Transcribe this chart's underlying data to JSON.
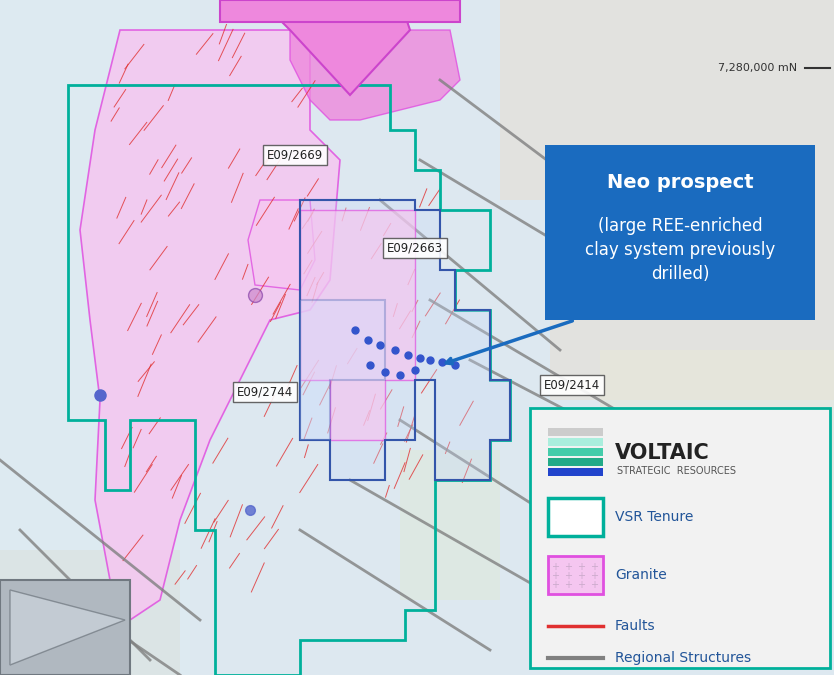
{
  "bg_color": "#e8eef5",
  "map_bg": "#dde8f0",
  "north_arrow_text": "7,280,000 mN",
  "neo_prospect_title": "Neo prospect",
  "neo_prospect_body": "(large REE-enriched\nclay system previously\ndrilled)",
  "neo_box_color": "#1a6bbf",
  "neo_text_color": "#ffffff",
  "label_E09_2669": "E09/2669",
  "label_E09_2663": "E09/2663",
  "label_E09_2744": "E09/2744",
  "label_E09_2414": "E09/2414",
  "tenure_color": "#00b09b",
  "granite_fill": "#f5c6f0",
  "granite_edge": "#e050e0",
  "fault_color": "#e03030",
  "regional_color": "#808080",
  "voltaic_teal1": "#aaeedd",
  "voltaic_teal2": "#44ccaa",
  "voltaic_teal3": "#22aa88",
  "voltaic_blue": "#2244cc",
  "legend_box_color": "#00b09b",
  "legend_bg": "#f5f5f5",
  "pink_arrow_color": "#dd66cc",
  "pink_fill": "#ee88dd"
}
